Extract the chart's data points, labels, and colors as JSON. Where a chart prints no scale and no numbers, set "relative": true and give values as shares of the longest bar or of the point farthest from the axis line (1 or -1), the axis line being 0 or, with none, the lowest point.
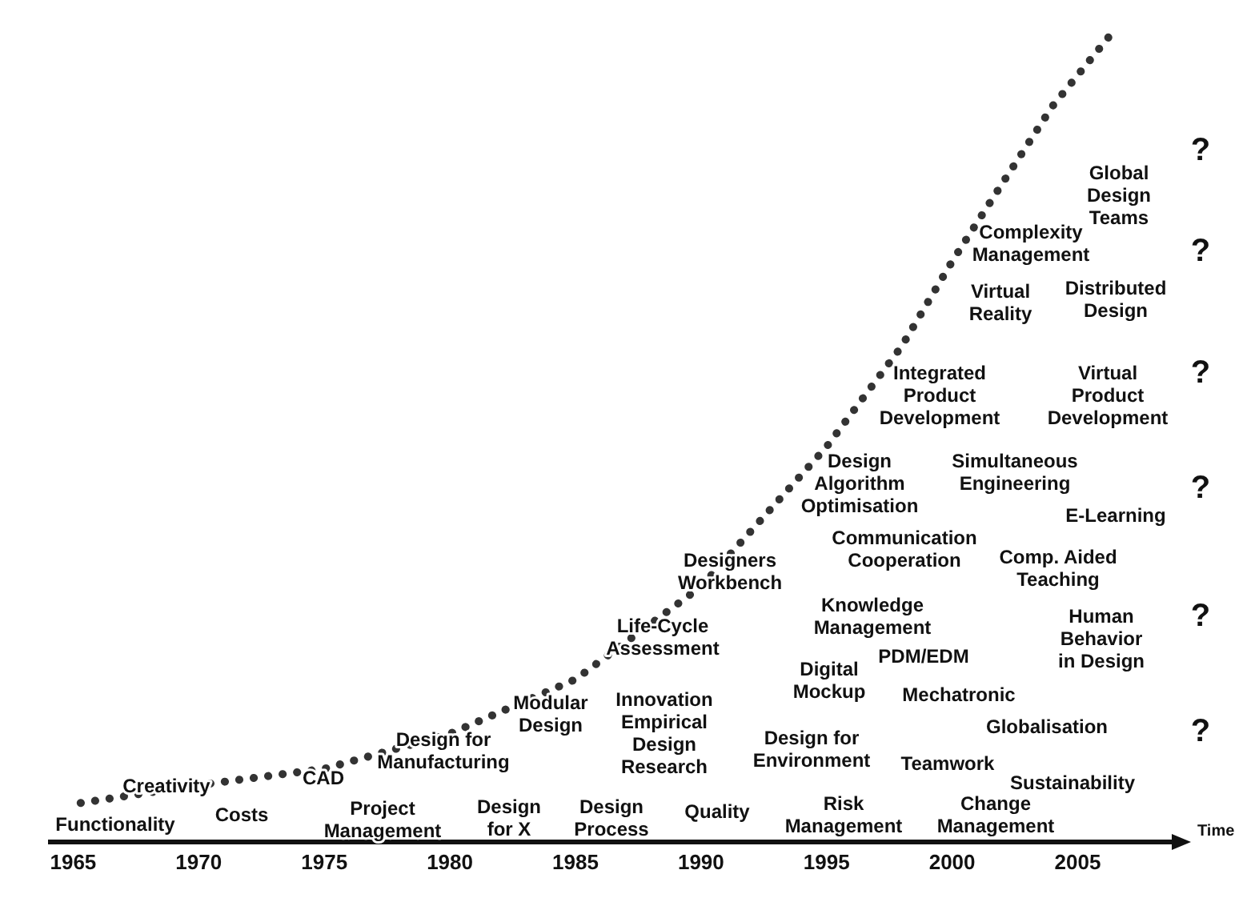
{
  "chart_data": {
    "type": "line",
    "relative": true,
    "xlabel": "Time",
    "xlim": [
      1964,
      2009
    ],
    "xticks": [
      1965,
      1970,
      1975,
      1980,
      1985,
      1990,
      1995,
      2000,
      2005
    ],
    "line_style": "dotted",
    "series": [
      {
        "color": "#333333",
        "x": [
          1965.3,
          1970,
          1975,
          1980,
          1985,
          1990,
          1995,
          1998,
          2000,
          2002,
          2004,
          2006.5
        ],
        "values": [
          0.048,
          0.07,
          0.09,
          0.133,
          0.2,
          0.314,
          0.486,
          0.61,
          0.714,
          0.81,
          0.905,
          1
        ]
      }
    ],
    "annotations": [
      "Functionality",
      "Creativity",
      "Costs",
      "CAD",
      "Design for\nManufacturing",
      "Project\nManagement",
      "Design\nfor X",
      "Modular\nDesign",
      "Design\nProcess",
      "Life-Cycle\nAssessment",
      "Innovation\nEmpirical\nDesign\nResearch",
      "Quality",
      "Designers\nWorkbench",
      "Design for\nEnvironment",
      "Risk\nManagement",
      "Knowledge\nManagement",
      "Digital\nMockup",
      "Design\nAlgorithm\nOptimisation",
      "Communication\nCooperation",
      "PDM/EDM",
      "Mechatronic",
      "Teamwork",
      "Change\nManagement",
      "Integrated\nProduct\nDevelopment",
      "Virtual\nReality",
      "Complexity\nManagement",
      "Global\nDesign\nTeams",
      "Distributed\nDesign",
      "Virtual\nProduct\nDevelopment",
      "Simultaneous\nEngineering",
      "E-Learning",
      "Comp. Aided\nTeaching",
      "Human\nBehavior\nin Design",
      "Globalisation",
      "Sustainability",
      "?",
      "?",
      "?",
      "?",
      "?",
      "?"
    ]
  }
}
